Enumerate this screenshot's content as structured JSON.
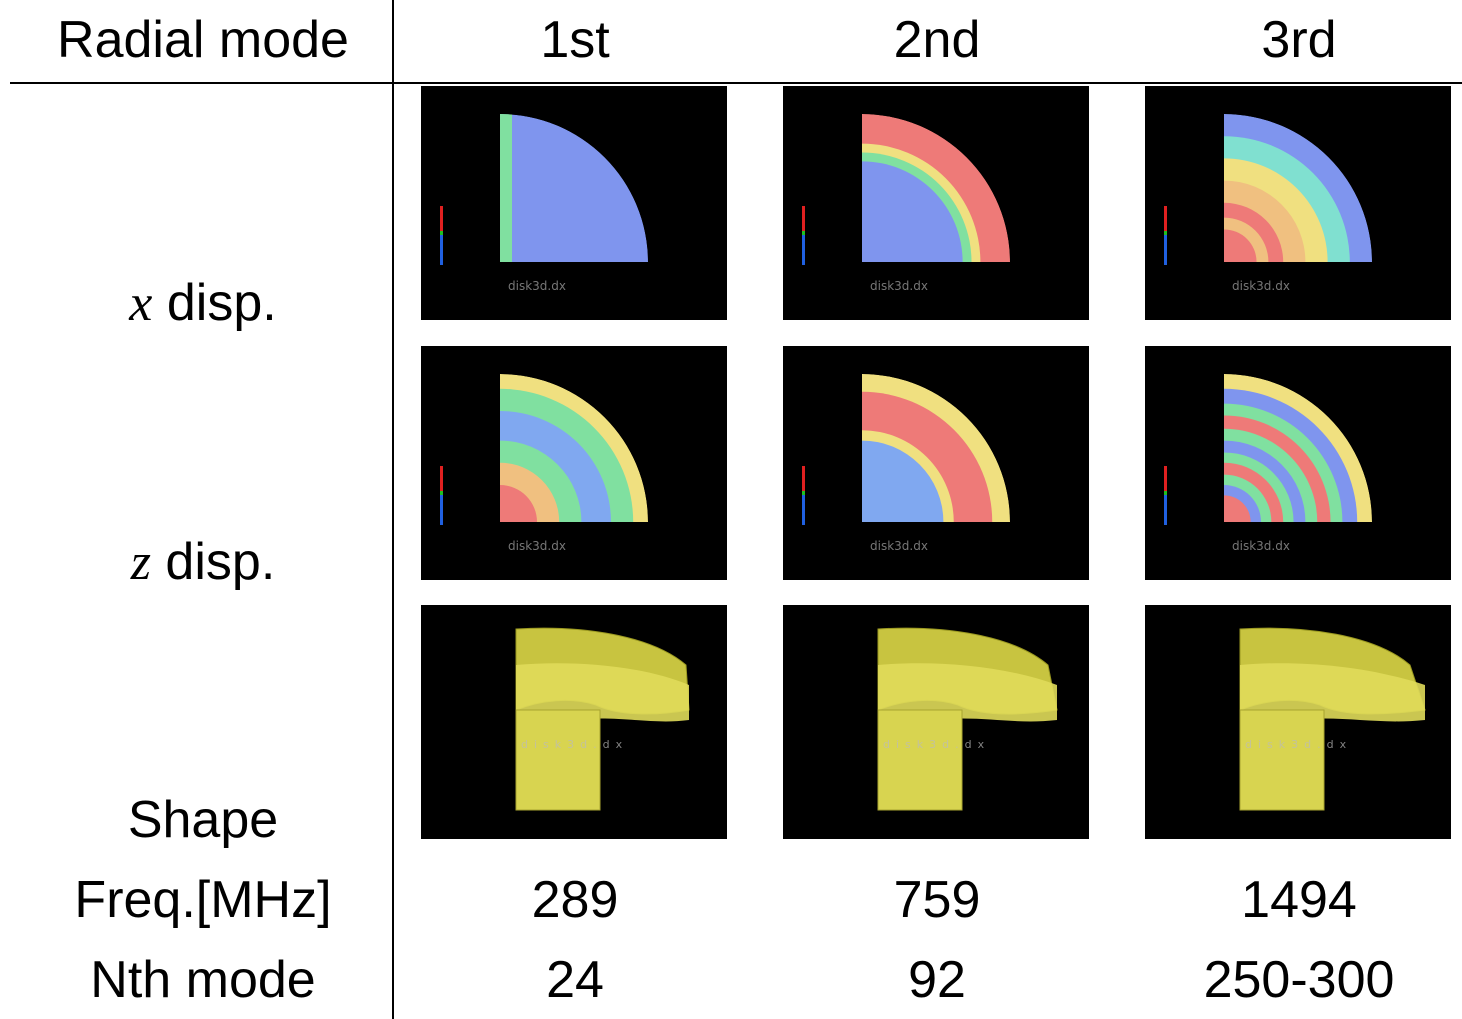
{
  "header": {
    "row_label": "Radial mode",
    "columns": [
      "1st",
      "2nd",
      "3rd"
    ]
  },
  "rows": [
    {
      "label_var": "x",
      "label": "disp."
    },
    {
      "label_var": "z",
      "label": "disp."
    },
    {
      "label": "Shape"
    },
    {
      "label": "Freq.[MHz]",
      "values": [
        289,
        759,
        1494
      ]
    },
    {
      "label": "Nth mode",
      "values": [
        24,
        92,
        "250-300"
      ]
    }
  ],
  "image_caption": "disk3d.dx"
}
